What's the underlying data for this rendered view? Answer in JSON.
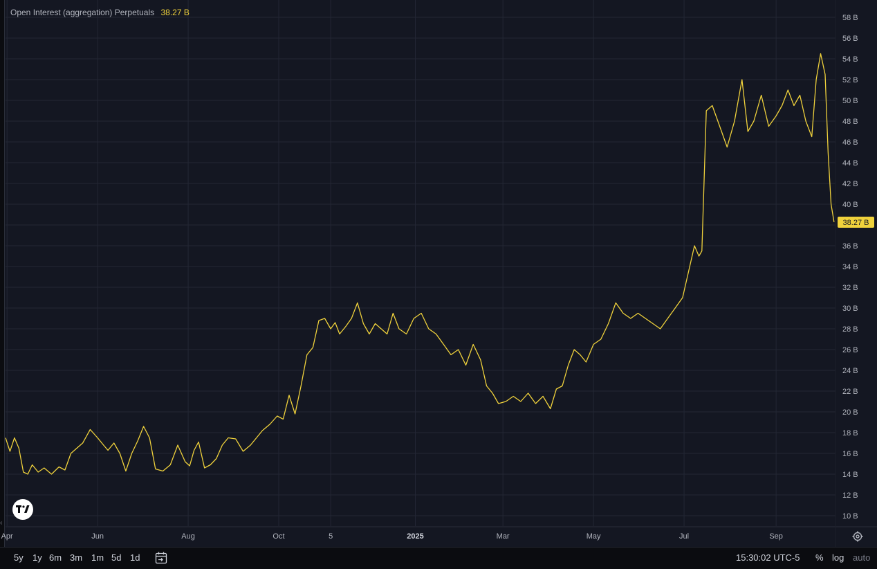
{
  "legend": {
    "title": "Open Interest (aggregation) Perpetuals",
    "value": "38.27 B"
  },
  "timeframes": [
    "5y",
    "1y",
    "6m",
    "3m",
    "1m",
    "5d",
    "1d"
  ],
  "status": {
    "clock": "15:30:02 UTC-5",
    "percent": "%",
    "log": "log",
    "auto": "auto"
  },
  "colors": {
    "line": "#f0d23c",
    "background": "#141722",
    "grid": "#232734",
    "last_price_label_bg": "#f0d23c"
  },
  "chart_data": {
    "type": "line",
    "title": "Open Interest (aggregation) Perpetuals",
    "unit": "B",
    "y_ticks": [
      "10 B",
      "12 B",
      "14 B",
      "16 B",
      "18 B",
      "20 B",
      "22 B",
      "24 B",
      "26 B",
      "28 B",
      "30 B",
      "32 B",
      "34 B",
      "36 B",
      "38 B",
      "40 B",
      "42 B",
      "44 B",
      "46 B",
      "48 B",
      "50 B",
      "52 B",
      "54 B",
      "56 B",
      "58 B"
    ],
    "y_tick_values": [
      10,
      12,
      14,
      16,
      18,
      20,
      22,
      24,
      26,
      28,
      30,
      32,
      34,
      36,
      38,
      40,
      42,
      44,
      46,
      48,
      50,
      52,
      54,
      56,
      58
    ],
    "ylim": [
      9,
      59
    ],
    "x_ticks": [
      {
        "label": "Apr",
        "date": "2024-04-01"
      },
      {
        "label": "Jun",
        "date": "2024-06-01"
      },
      {
        "label": "Aug",
        "date": "2024-08-01"
      },
      {
        "label": "Oct",
        "date": "2024-10-01"
      },
      {
        "label": "5",
        "date": "2024-11-05"
      },
      {
        "label": "2025",
        "date": "2025-01-01",
        "bold": true
      },
      {
        "label": "Mar",
        "date": "2025-03-01"
      },
      {
        "label": "May",
        "date": "2025-05-01"
      },
      {
        "label": "Jul",
        "date": "2025-07-01"
      },
      {
        "label": "Sep",
        "date": "2025-09-01"
      }
    ],
    "xlim": [
      "2024-03-31",
      "2025-10-11"
    ],
    "last_value_label": "38.27 B",
    "last_value": 38.27,
    "grid": true,
    "series": [
      {
        "x": [
          "2024-03-31",
          "2024-04-03",
          "2024-04-06",
          "2024-04-09",
          "2024-04-12",
          "2024-04-15",
          "2024-04-18",
          "2024-04-22",
          "2024-04-26",
          "2024-05-01",
          "2024-05-06",
          "2024-05-10",
          "2024-05-14",
          "2024-05-18",
          "2024-05-22",
          "2024-05-27",
          "2024-06-01",
          "2024-06-05",
          "2024-06-08",
          "2024-06-12",
          "2024-06-16",
          "2024-06-20",
          "2024-06-24",
          "2024-06-28",
          "2024-07-02",
          "2024-07-06",
          "2024-07-10",
          "2024-07-15",
          "2024-07-20",
          "2024-07-25",
          "2024-07-30",
          "2024-08-02",
          "2024-08-05",
          "2024-08-08",
          "2024-08-12",
          "2024-08-16",
          "2024-08-20",
          "2024-08-24",
          "2024-08-28",
          "2024-09-02",
          "2024-09-07",
          "2024-09-12",
          "2024-09-16",
          "2024-09-20",
          "2024-09-25",
          "2024-09-30",
          "2024-10-04",
          "2024-10-08",
          "2024-10-12",
          "2024-10-16",
          "2024-10-20",
          "2024-10-24",
          "2024-10-28",
          "2024-11-01",
          "2024-11-05",
          "2024-11-08",
          "2024-11-11",
          "2024-11-15",
          "2024-11-19",
          "2024-11-23",
          "2024-11-27",
          "2024-12-01",
          "2024-12-05",
          "2024-12-09",
          "2024-12-13",
          "2024-12-17",
          "2024-12-21",
          "2024-12-26",
          "2024-12-31",
          "2025-01-05",
          "2025-01-10",
          "2025-01-15",
          "2025-01-20",
          "2025-01-25",
          "2025-01-30",
          "2025-02-04",
          "2025-02-09",
          "2025-02-14",
          "2025-02-18",
          "2025-02-22",
          "2025-02-26",
          "2025-03-03",
          "2025-03-08",
          "2025-03-13",
          "2025-03-18",
          "2025-03-23",
          "2025-03-28",
          "2025-04-02",
          "2025-04-06",
          "2025-04-10",
          "2025-04-14",
          "2025-04-18",
          "2025-04-22",
          "2025-04-26",
          "2025-05-01",
          "2025-05-06",
          "2025-05-11",
          "2025-05-16",
          "2025-05-21",
          "2025-05-26",
          "2025-05-31",
          "2025-06-05",
          "2025-06-10",
          "2025-06-15",
          "2025-06-20",
          "2025-06-25",
          "2025-06-30",
          "2025-07-04",
          "2025-07-08",
          "2025-07-11",
          "2025-07-13",
          "2025-07-16",
          "2025-07-20",
          "2025-07-25",
          "2025-07-30",
          "2025-08-04",
          "2025-08-09",
          "2025-08-13",
          "2025-08-17",
          "2025-08-22",
          "2025-08-27",
          "2025-09-01",
          "2025-09-05",
          "2025-09-09",
          "2025-09-13",
          "2025-09-17",
          "2025-09-21",
          "2025-09-25",
          "2025-09-28",
          "2025-10-01",
          "2025-10-04",
          "2025-10-06",
          "2025-10-08",
          "2025-10-10"
        ],
        "values": [
          17.5,
          16.2,
          17.5,
          16.5,
          14.2,
          14.0,
          14.9,
          14.2,
          14.6,
          14.0,
          14.7,
          14.4,
          16.0,
          16.5,
          17.0,
          18.3,
          17.5,
          16.8,
          16.3,
          17.0,
          16.0,
          14.3,
          16.0,
          17.2,
          18.6,
          17.5,
          14.5,
          14.3,
          14.9,
          16.8,
          15.2,
          14.8,
          16.3,
          17.1,
          14.6,
          14.9,
          15.5,
          16.8,
          17.5,
          17.4,
          16.2,
          16.8,
          17.5,
          18.2,
          18.8,
          19.6,
          19.3,
          21.6,
          19.8,
          22.5,
          25.5,
          26.2,
          28.8,
          29.0,
          28.0,
          28.6,
          27.5,
          28.2,
          29.0,
          30.5,
          28.5,
          27.5,
          28.5,
          28.0,
          27.5,
          29.5,
          28.0,
          27.5,
          29.0,
          29.5,
          28.0,
          27.5,
          26.5,
          25.5,
          26.0,
          24.5,
          26.5,
          25.0,
          22.5,
          21.8,
          20.8,
          21.0,
          21.5,
          21.0,
          21.8,
          20.8,
          21.5,
          20.3,
          22.2,
          22.5,
          24.5,
          26.0,
          25.5,
          24.8,
          26.5,
          27.0,
          28.5,
          30.5,
          29.5,
          29.0,
          29.5,
          29.0,
          28.5,
          28.0,
          29.0,
          30.0,
          31.0,
          33.5,
          36.0,
          35.0,
          35.5,
          49.0,
          49.5,
          47.5,
          45.5,
          48.0,
          52.0,
          47.0,
          48.0,
          50.5,
          47.5,
          48.5,
          49.5,
          51.0,
          49.5,
          50.5,
          48.0,
          46.5,
          52.0,
          54.5,
          52.5,
          45.0,
          40.0,
          38.27
        ]
      }
    ]
  }
}
